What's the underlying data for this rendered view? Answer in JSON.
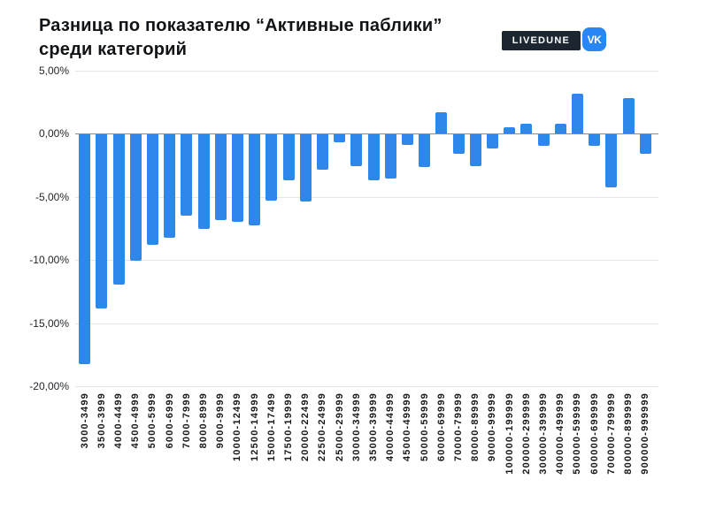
{
  "header": {
    "title_line1": "Разница по показателю “Активные паблики”",
    "title_line2": "среди категорий",
    "livedune_label": "LIVEDUNE",
    "vk_label": "VK"
  },
  "colors": {
    "bar": "#2e87e9",
    "badge_bg": "#1b2631",
    "vk_bg": "#2787f5",
    "grid": "#e6e6e6",
    "zero_line": "#8a8a8a",
    "text": "#16181a"
  },
  "chart_data": {
    "type": "bar",
    "title": "Разница по показателю “Активные паблики” среди категорий",
    "xlabel": "",
    "ylabel": "",
    "ylim": [
      -20,
      5
    ],
    "grid": true,
    "legend": false,
    "y_ticks": [
      {
        "label": "5,00%",
        "value": 5
      },
      {
        "label": "0,00%",
        "value": 0
      },
      {
        "label": "-5,00%",
        "value": -5
      },
      {
        "label": "-10,00%",
        "value": -10
      },
      {
        "label": "-15,00%",
        "value": -15
      },
      {
        "label": "-20,00%",
        "value": -20
      }
    ],
    "categories": [
      "3000-3499",
      "3500-3999",
      "4000-4499",
      "4500-4999",
      "5000-5999",
      "6000-6999",
      "7000-7999",
      "8000-8999",
      "9000-9999",
      "10000-12499",
      "12500-14999",
      "15000-17499",
      "17500-19999",
      "20000-22499",
      "22500-24999",
      "25000-29999",
      "30000-34999",
      "35000-39999",
      "40000-44999",
      "45000-49999",
      "50000-59999",
      "60000-69999",
      "70000-79999",
      "80000-89999",
      "90000-99999",
      "100000-199999",
      "200000-299999",
      "300000-399999",
      "400000-499999",
      "500000-599999",
      "600000-699999",
      "700000-799999",
      "800000-899999",
      "900000-999999"
    ],
    "values": [
      -18.2,
      -13.8,
      -11.9,
      -10.0,
      -8.7,
      -8.2,
      -6.4,
      -7.5,
      -6.8,
      -6.9,
      -7.2,
      -5.2,
      -3.6,
      -5.3,
      -2.8,
      -0.6,
      -2.5,
      -3.6,
      -3.5,
      -0.8,
      -2.6,
      1.7,
      -1.5,
      -2.5,
      -1.1,
      0.5,
      0.8,
      -0.9,
      0.8,
      3.2,
      -0.9,
      -4.2,
      2.8,
      -1.5
    ]
  }
}
